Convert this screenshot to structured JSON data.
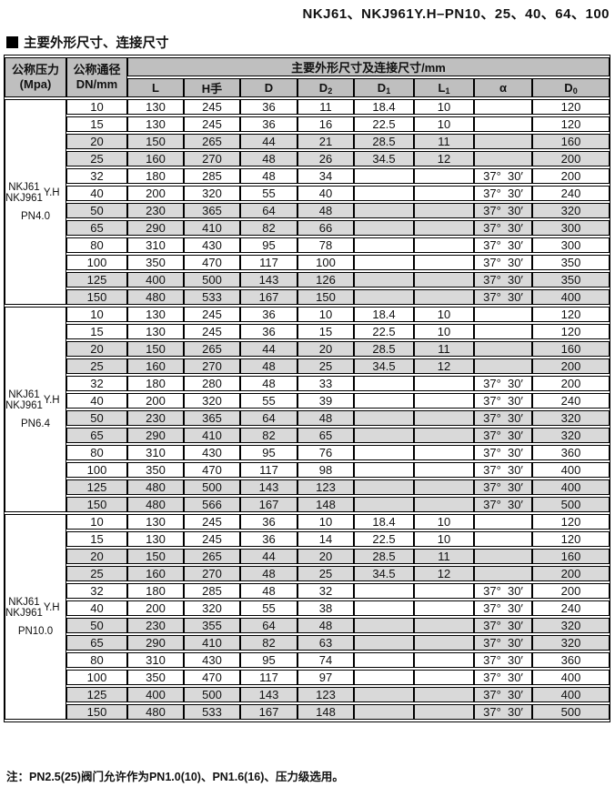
{
  "page": {
    "title": "NKJ61、NKJ961Y.H–PN10、25、40、64、100",
    "section_title": "主要外形尺寸、连接尺寸",
    "footnote": "注：PN2.5(25)阀门允许作为PN1.0(10)、PN1.6(16)、压力级选用。"
  },
  "colors": {
    "header_bg": "#bfbfbf",
    "shaded_row_bg": "#d9d9d9",
    "border": "#000000"
  },
  "table": {
    "pressure_header": [
      "公称压力",
      "(Mpa)"
    ],
    "dn_header": [
      "公称通径",
      "DN/mm"
    ],
    "span_header": "主要外形尺寸及连接尺寸/mm",
    "columns": [
      {
        "t": "L",
        "s": ""
      },
      {
        "t": "H手",
        "s": ""
      },
      {
        "t": "D",
        "s": ""
      },
      {
        "t": "D",
        "s": "2"
      },
      {
        "t": "D",
        "s": "1"
      },
      {
        "t": "L",
        "s": "1"
      },
      {
        "t": "α",
        "s": ""
      },
      {
        "t": "D",
        "s": "0"
      }
    ],
    "shaded_row_indices": [
      2,
      3,
      6,
      7,
      10,
      11
    ],
    "groups": [
      {
        "model_line1": "NKJ61",
        "model_line2": "NKJ961",
        "model_suffix": "Y.H",
        "pressure_class": "PN4.0",
        "rows": [
          [
            "10",
            "130",
            "245",
            "36",
            "11",
            "18.4",
            "10",
            "",
            "120"
          ],
          [
            "15",
            "130",
            "245",
            "36",
            "16",
            "22.5",
            "10",
            "",
            "120"
          ],
          [
            "20",
            "150",
            "265",
            "44",
            "21",
            "28.5",
            "11",
            "",
            "160"
          ],
          [
            "25",
            "160",
            "270",
            "48",
            "26",
            "34.5",
            "12",
            "",
            "200"
          ],
          [
            "32",
            "180",
            "285",
            "48",
            "34",
            "",
            "",
            "37°  30′",
            "200"
          ],
          [
            "40",
            "200",
            "320",
            "55",
            "40",
            "",
            "",
            "37°  30′",
            "240"
          ],
          [
            "50",
            "230",
            "365",
            "64",
            "48",
            "",
            "",
            "37°  30′",
            "320"
          ],
          [
            "65",
            "290",
            "410",
            "82",
            "66",
            "",
            "",
            "37°  30′",
            "300"
          ],
          [
            "80",
            "310",
            "430",
            "95",
            "78",
            "",
            "",
            "37°  30′",
            "300"
          ],
          [
            "100",
            "350",
            "470",
            "117",
            "100",
            "",
            "",
            "37°  30′",
            "350"
          ],
          [
            "125",
            "400",
            "500",
            "143",
            "126",
            "",
            "",
            "37°  30′",
            "350"
          ],
          [
            "150",
            "480",
            "533",
            "167",
            "150",
            "",
            "",
            "37°  30′",
            "400"
          ]
        ]
      },
      {
        "model_line1": "NKJ61",
        "model_line2": "NKJ961",
        "model_suffix": "Y.H",
        "pressure_class": "PN6.4",
        "rows": [
          [
            "10",
            "130",
            "245",
            "36",
            "10",
            "18.4",
            "10",
            "",
            "120"
          ],
          [
            "15",
            "130",
            "245",
            "36",
            "15",
            "22.5",
            "10",
            "",
            "120"
          ],
          [
            "20",
            "150",
            "265",
            "44",
            "20",
            "28.5",
            "11",
            "",
            "160"
          ],
          [
            "25",
            "160",
            "270",
            "48",
            "25",
            "34.5",
            "12",
            "",
            "200"
          ],
          [
            "32",
            "180",
            "280",
            "48",
            "33",
            "",
            "",
            "37°  30′",
            "200"
          ],
          [
            "40",
            "200",
            "320",
            "55",
            "39",
            "",
            "",
            "37°  30′",
            "240"
          ],
          [
            "50",
            "230",
            "365",
            "64",
            "48",
            "",
            "",
            "37°  30′",
            "320"
          ],
          [
            "65",
            "290",
            "410",
            "82",
            "65",
            "",
            "",
            "37°  30′",
            "320"
          ],
          [
            "80",
            "310",
            "430",
            "95",
            "76",
            "",
            "",
            "37°  30′",
            "360"
          ],
          [
            "100",
            "350",
            "470",
            "117",
            "98",
            "",
            "",
            "37°  30′",
            "400"
          ],
          [
            "125",
            "480",
            "500",
            "143",
            "123",
            "",
            "",
            "37°  30′",
            "400"
          ],
          [
            "150",
            "480",
            "566",
            "167",
            "148",
            "",
            "",
            "37°  30′",
            "500"
          ]
        ]
      },
      {
        "model_line1": "NKJ61",
        "model_line2": "NKJ961",
        "model_suffix": "Y.H",
        "pressure_class": "PN10.0",
        "rows": [
          [
            "10",
            "130",
            "245",
            "36",
            "10",
            "18.4",
            "10",
            "",
            "120"
          ],
          [
            "15",
            "130",
            "245",
            "36",
            "14",
            "22.5",
            "10",
            "",
            "120"
          ],
          [
            "20",
            "150",
            "265",
            "44",
            "20",
            "28.5",
            "11",
            "",
            "160"
          ],
          [
            "25",
            "160",
            "270",
            "48",
            "25",
            "34.5",
            "12",
            "",
            "200"
          ],
          [
            "32",
            "180",
            "285",
            "48",
            "32",
            "",
            "",
            "37°  30′",
            "200"
          ],
          [
            "40",
            "200",
            "320",
            "55",
            "38",
            "",
            "",
            "37°  30′",
            "240"
          ],
          [
            "50",
            "230",
            "355",
            "64",
            "48",
            "",
            "",
            "37°  30′",
            "320"
          ],
          [
            "65",
            "290",
            "410",
            "82",
            "63",
            "",
            "",
            "37°  30′",
            "320"
          ],
          [
            "80",
            "310",
            "430",
            "95",
            "74",
            "",
            "",
            "37°  30′",
            "360"
          ],
          [
            "100",
            "350",
            "470",
            "117",
            "97",
            "",
            "",
            "37°  30′",
            "400"
          ],
          [
            "125",
            "400",
            "500",
            "143",
            "123",
            "",
            "",
            "37°  30′",
            "400"
          ],
          [
            "150",
            "480",
            "533",
            "167",
            "148",
            "",
            "",
            "37°  30′",
            "500"
          ]
        ]
      }
    ]
  }
}
